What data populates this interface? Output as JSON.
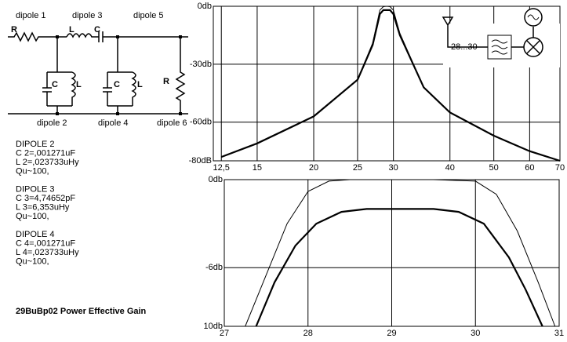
{
  "chart_data": [
    {
      "type": "line",
      "xscale": "log",
      "grid": true,
      "x": [
        12.5,
        15,
        20,
        25,
        27,
        28,
        28.5,
        29,
        29.5,
        30,
        31,
        35,
        40,
        50,
        60,
        70
      ],
      "xlim": [
        12,
        70
      ],
      "xticks": [
        {
          "value": 12.5,
          "label": "12,5"
        },
        15,
        20,
        25,
        30,
        40,
        50,
        60,
        70
      ],
      "ylim": [
        -80,
        0
      ],
      "yticks": [
        {
          "value": 0,
          "label": "0db"
        },
        {
          "value": -30,
          "label": "-30db"
        },
        {
          "value": -60,
          "label": "-60db"
        },
        {
          "value": -80,
          "label": "-80dB"
        }
      ],
      "series": [
        {
          "color": "#000000",
          "line_width": 1,
          "values": [
            -78,
            -71,
            -57,
            -38,
            -19,
            -2,
            -0.2,
            0,
            -0.2,
            -2,
            -14,
            -42,
            -55,
            -67,
            -75,
            -80
          ]
        },
        {
          "color": "#000000",
          "line_width": 2.2,
          "values": [
            -78,
            -71,
            -57,
            -38,
            -20,
            -4,
            -2,
            -2,
            -2,
            -4,
            -15,
            -42,
            -55,
            -67,
            -75,
            -80
          ]
        }
      ],
      "inset_label": "28...30"
    },
    {
      "type": "line",
      "xscale": "linear",
      "grid": true,
      "xlim": [
        27,
        31
      ],
      "xticks": [
        27,
        28,
        29,
        30,
        31
      ],
      "ylim": [
        -10,
        0
      ],
      "yticks": [
        {
          "value": 0,
          "label": "0db"
        },
        {
          "value": -6,
          "label": "-6db"
        },
        {
          "value": -10,
          "label": "10db"
        }
      ],
      "series": [
        {
          "color": "#000000",
          "line_width": 1,
          "x": [
            27.25,
            27.5,
            27.75,
            28,
            28.25,
            28.5,
            29,
            29.5,
            30,
            30.25,
            30.5,
            30.75,
            30.95
          ],
          "values": [
            -10,
            -6.5,
            -3,
            -0.8,
            -0.1,
            0,
            0,
            0,
            -0.1,
            -1,
            -3.5,
            -7,
            -10
          ]
        },
        {
          "color": "#000000",
          "line_width": 2.2,
          "x": [
            27.38,
            27.6,
            27.85,
            28.1,
            28.4,
            28.7,
            29,
            29.5,
            29.8,
            30.1,
            30.4,
            30.6,
            30.8
          ],
          "values": [
            -10,
            -7,
            -4.5,
            -3,
            -2.2,
            -2,
            -2,
            -2,
            -2.2,
            -3,
            -5.3,
            -7.5,
            -10
          ]
        }
      ]
    }
  ],
  "schematic": {
    "labels": [
      "dipole 1",
      "dipole 3",
      "dipole 5",
      "dipole 2",
      "dipole 4",
      "dipole 6",
      "R",
      "L",
      "C",
      "C",
      "L",
      "C",
      "L",
      "R"
    ]
  },
  "notes": [
    [
      "DIPOLE 2",
      "C 2=,001271uF",
      "L 2=,023733uHy",
      "Qu~100,"
    ],
    [
      "DIPOLE 3",
      "C 3=4,74652pF",
      "L 3=6,353uHy",
      "Qu~100,"
    ],
    [
      "DIPOLE 4",
      "C 4=,001271uF",
      "L 4=,023733uHy",
      "Qu~100,"
    ]
  ],
  "footer": "29BuBp02 Power Effective Gain"
}
